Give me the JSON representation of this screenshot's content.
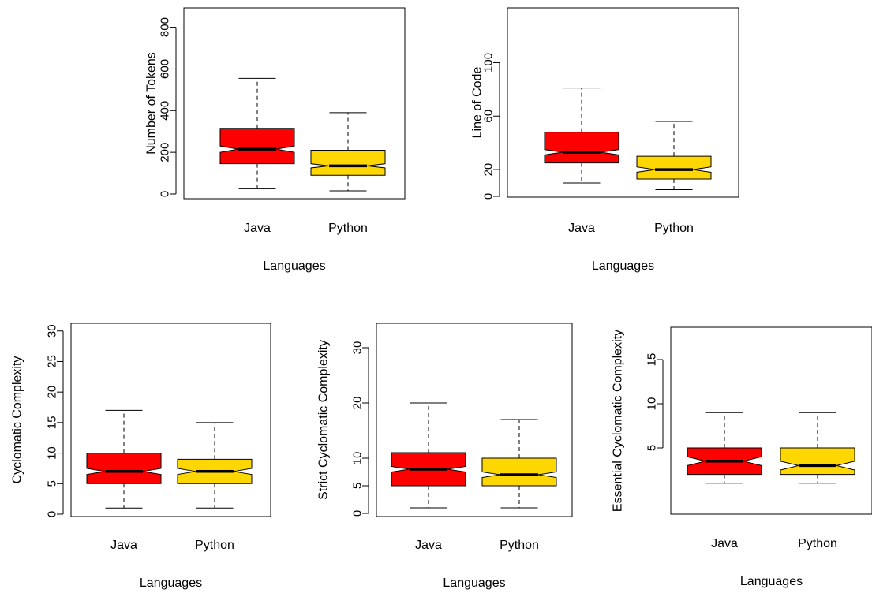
{
  "colors": {
    "java": "#ff0000",
    "python": "#ffd700",
    "outline": "#000000"
  },
  "chart_data": [
    {
      "type": "boxplot",
      "notched": true,
      "ylabel": "Number of Tokens",
      "xlabel": "Languages",
      "categories": [
        "Java",
        "Python"
      ],
      "ylim": [
        0,
        840
      ],
      "yticks": [
        0,
        200,
        400,
        600,
        800
      ],
      "boxes": [
        {
          "name": "Java",
          "min": 25,
          "q1": 145,
          "median": 215,
          "q3": 315,
          "max": 555,
          "notch_low": 200,
          "notch_high": 230
        },
        {
          "name": "Python",
          "min": 15,
          "q1": 90,
          "median": 135,
          "q3": 210,
          "max": 390,
          "notch_low": 125,
          "notch_high": 145
        }
      ]
    },
    {
      "type": "boxplot",
      "notched": true,
      "ylabel": "Line of Code",
      "xlabel": "Languages",
      "categories": [
        "Java",
        "Python"
      ],
      "ylim": [
        0,
        138
      ],
      "yticks": [
        0,
        20,
        60,
        100
      ],
      "boxes": [
        {
          "name": "Java",
          "min": 10,
          "q1": 25,
          "median": 33,
          "q3": 48,
          "max": 81,
          "notch_low": 31,
          "notch_high": 35
        },
        {
          "name": "Python",
          "min": 5,
          "q1": 13,
          "median": 20,
          "q3": 30,
          "max": 56,
          "notch_low": 18,
          "notch_high": 22
        }
      ]
    },
    {
      "type": "boxplot",
      "notched": true,
      "ylabel": "Cyclomatic Complexity",
      "xlabel": "Languages",
      "categories": [
        "Java",
        "Python"
      ],
      "ylim": [
        0,
        31
      ],
      "yticks": [
        0,
        5,
        10,
        15,
        20,
        25,
        30
      ],
      "boxes": [
        {
          "name": "Java",
          "min": 1,
          "q1": 5,
          "median": 7,
          "q3": 10,
          "max": 17,
          "notch_low": 6.5,
          "notch_high": 7.5
        },
        {
          "name": "Python",
          "min": 1,
          "q1": 5,
          "median": 7,
          "q3": 9,
          "max": 15,
          "notch_low": 6.5,
          "notch_high": 7.5
        }
      ]
    },
    {
      "type": "boxplot",
      "notched": true,
      "ylabel": "Strict Cyclomatic Complexity",
      "xlabel": "Languages",
      "categories": [
        "Java",
        "Python"
      ],
      "ylim": [
        0,
        34
      ],
      "yticks": [
        0,
        5,
        10,
        20,
        30
      ],
      "boxes": [
        {
          "name": "Java",
          "min": 1,
          "q1": 5,
          "median": 8,
          "q3": 11,
          "max": 20,
          "notch_low": 7.5,
          "notch_high": 8.5
        },
        {
          "name": "Python",
          "min": 1,
          "q1": 5,
          "median": 7,
          "q3": 10,
          "max": 17,
          "notch_low": 6.5,
          "notch_high": 7.5
        }
      ]
    },
    {
      "type": "boxplot",
      "notched": true,
      "ylabel": "Essential Cyclomatic Complexity",
      "xlabel": "Languages",
      "categories": [
        "Java",
        "Python"
      ],
      "ylim": [
        0,
        20
      ],
      "yticks": [
        5,
        10,
        15
      ],
      "boxes": [
        {
          "name": "Java",
          "min": 1,
          "q1": 2,
          "median": 3.5,
          "q3": 5,
          "max": 9,
          "notch_low": 3,
          "notch_high": 4
        },
        {
          "name": "Python",
          "min": 1,
          "q1": 2,
          "median": 3,
          "q3": 5,
          "max": 9,
          "notch_low": 2.5,
          "notch_high": 3.5
        }
      ]
    }
  ]
}
